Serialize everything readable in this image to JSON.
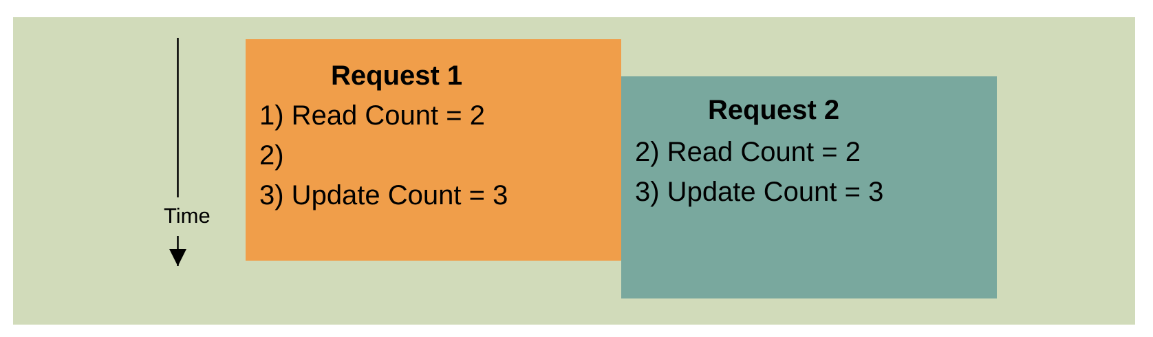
{
  "colors": {
    "background": "#d1dbba",
    "request_1_fill": "#f09e4a",
    "request_2_fill": "#79a89e",
    "text": "#000000"
  },
  "time_axis": {
    "label": "Time",
    "direction": "down"
  },
  "request_1": {
    "title": "Request 1",
    "lines": [
      "1) Read Count = 2",
      "2)",
      "3) Update Count = 3"
    ]
  },
  "request_2": {
    "title": "Request 2",
    "lines": [
      "2) Read Count = 2",
      "3) Update Count = 3"
    ]
  }
}
